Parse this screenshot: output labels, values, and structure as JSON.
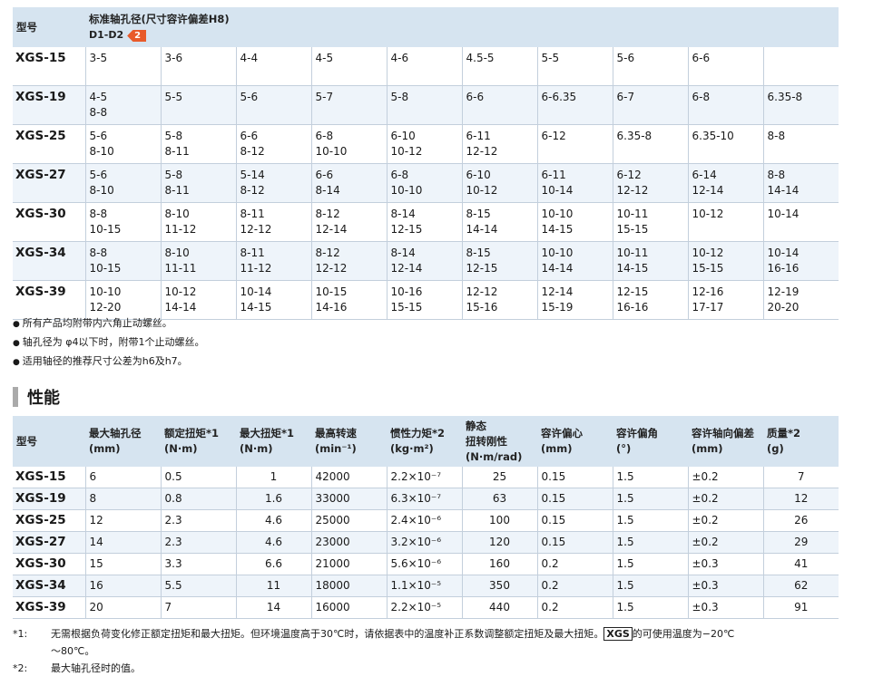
{
  "table1": {
    "col_model": "型号",
    "header_title": "标准轴孔径(尺寸容许偏差H8)",
    "header_sub": "D1-D2",
    "header_badge": "2",
    "rows": [
      {
        "model": "XGS-15",
        "cells": [
          [
            "3-5",
            ""
          ],
          [
            "3-6",
            ""
          ],
          [
            "4-4",
            ""
          ],
          [
            "4-5",
            ""
          ],
          [
            "4-6",
            ""
          ],
          [
            "4.5-5",
            ""
          ],
          [
            "5-5",
            ""
          ],
          [
            "5-6",
            ""
          ],
          [
            "6-6",
            ""
          ],
          [
            "",
            ""
          ]
        ]
      },
      {
        "model": "XGS-19",
        "cells": [
          [
            "4-5",
            "8-8"
          ],
          [
            "5-5",
            ""
          ],
          [
            "5-6",
            ""
          ],
          [
            "5-7",
            ""
          ],
          [
            "5-8",
            ""
          ],
          [
            "6-6",
            ""
          ],
          [
            "6-6.35",
            ""
          ],
          [
            "6-7",
            ""
          ],
          [
            "6-8",
            ""
          ],
          [
            "6.35-8",
            ""
          ]
        ]
      },
      {
        "model": "XGS-25",
        "cells": [
          [
            "5-6",
            "8-10"
          ],
          [
            "5-8",
            "8-11"
          ],
          [
            "6-6",
            "8-12"
          ],
          [
            "6-8",
            "10-10"
          ],
          [
            "6-10",
            "10-12"
          ],
          [
            "6-11",
            "12-12"
          ],
          [
            "6-12",
            ""
          ],
          [
            "6.35-8",
            ""
          ],
          [
            "6.35-10",
            ""
          ],
          [
            "8-8",
            ""
          ]
        ]
      },
      {
        "model": "XGS-27",
        "cells": [
          [
            "5-6",
            "8-10"
          ],
          [
            "5-8",
            "8-11"
          ],
          [
            "5-14",
            "8-12"
          ],
          [
            "6-6",
            "8-14"
          ],
          [
            "6-8",
            "10-10"
          ],
          [
            "6-10",
            "10-12"
          ],
          [
            "6-11",
            "10-14"
          ],
          [
            "6-12",
            "12-12"
          ],
          [
            "6-14",
            "12-14"
          ],
          [
            "8-8",
            "14-14"
          ]
        ]
      },
      {
        "model": "XGS-30",
        "cells": [
          [
            "8-8",
            "10-15"
          ],
          [
            "8-10",
            "11-12"
          ],
          [
            "8-11",
            "12-12"
          ],
          [
            "8-12",
            "12-14"
          ],
          [
            "8-14",
            "12-15"
          ],
          [
            "8-15",
            "14-14"
          ],
          [
            "10-10",
            "14-15"
          ],
          [
            "10-11",
            "15-15"
          ],
          [
            "10-12",
            ""
          ],
          [
            "10-14",
            ""
          ]
        ]
      },
      {
        "model": "XGS-34",
        "cells": [
          [
            "8-8",
            "10-15"
          ],
          [
            "8-10",
            "11-11"
          ],
          [
            "8-11",
            "11-12"
          ],
          [
            "8-12",
            "12-12"
          ],
          [
            "8-14",
            "12-14"
          ],
          [
            "8-15",
            "12-15"
          ],
          [
            "10-10",
            "14-14"
          ],
          [
            "10-11",
            "14-15"
          ],
          [
            "10-12",
            "15-15"
          ],
          [
            "10-14",
            "16-16"
          ]
        ]
      },
      {
        "model": "XGS-39",
        "cells": [
          [
            "10-10",
            "12-20"
          ],
          [
            "10-12",
            "14-14"
          ],
          [
            "10-14",
            "14-15"
          ],
          [
            "10-15",
            "14-16"
          ],
          [
            "10-16",
            "15-15"
          ],
          [
            "12-12",
            "15-16"
          ],
          [
            "12-14",
            "15-19"
          ],
          [
            "12-15",
            "16-16"
          ],
          [
            "12-16",
            "17-17"
          ],
          [
            "12-19",
            "20-20"
          ]
        ]
      }
    ]
  },
  "notes1": [
    "所有产品均附带内六角止动螺丝。",
    "轴孔径为 φ4以下时，附带1个止动螺丝。",
    "适用轴径的推荐尺寸公差为h6及h7。"
  ],
  "section_title": "性能",
  "table2": {
    "headers": [
      [
        "型号",
        ""
      ],
      [
        "最大轴孔径",
        "(mm)"
      ],
      [
        "额定扭矩*1",
        "(N·m)"
      ],
      [
        "最大扭矩*1",
        "(N·m)"
      ],
      [
        "最高转速",
        "(min⁻¹)"
      ],
      [
        "惯性力矩*2",
        "(kg·m²)"
      ],
      [
        "静态\n扭转刚性",
        "(N·m/rad)"
      ],
      [
        "容许偏心",
        "(mm)"
      ],
      [
        "容许偏角",
        "(°)"
      ],
      [
        "容许轴向偏差",
        "(mm)"
      ],
      [
        "质量*2",
        "(g)"
      ]
    ],
    "rows": [
      [
        "XGS-15",
        "6",
        "0.5",
        "1",
        "42000",
        "2.2×10⁻⁷",
        "25",
        "0.15",
        "1.5",
        "±0.2",
        "7"
      ],
      [
        "XGS-19",
        "8",
        "0.8",
        "1.6",
        "33000",
        "6.3×10⁻⁷",
        "63",
        "0.15",
        "1.5",
        "±0.2",
        "12"
      ],
      [
        "XGS-25",
        "12",
        "2.3",
        "4.6",
        "25000",
        "2.4×10⁻⁶",
        "100",
        "0.15",
        "1.5",
        "±0.2",
        "26"
      ],
      [
        "XGS-27",
        "14",
        "2.3",
        "4.6",
        "23000",
        "3.2×10⁻⁶",
        "120",
        "0.15",
        "1.5",
        "±0.2",
        "29"
      ],
      [
        "XGS-30",
        "15",
        "3.3",
        "6.6",
        "21000",
        "5.6×10⁻⁶",
        "160",
        "0.2",
        "1.5",
        "±0.3",
        "41"
      ],
      [
        "XGS-34",
        "16",
        "5.5",
        "11",
        "18000",
        "1.1×10⁻⁵",
        "350",
        "0.2",
        "1.5",
        "±0.3",
        "62"
      ],
      [
        "XGS-39",
        "20",
        "7",
        "14",
        "16000",
        "2.2×10⁻⁵",
        "440",
        "0.2",
        "1.5",
        "±0.3",
        "91"
      ]
    ]
  },
  "notes2": [
    {
      "mark": "*1:",
      "text_a": "无需根据负荷变化修正额定扭矩和最大扭矩。但环境温度高于30℃时，请依据表中的温度补正系数调整额定扭矩及最大扭矩。",
      "xgs": "XGS",
      "text_b": "的可使用温度为−20℃",
      "text_c": "～80℃。"
    },
    {
      "mark": "*2:",
      "text_a": "最大轴孔径时的值。",
      "xgs": "",
      "text_b": "",
      "text_c": ""
    }
  ]
}
